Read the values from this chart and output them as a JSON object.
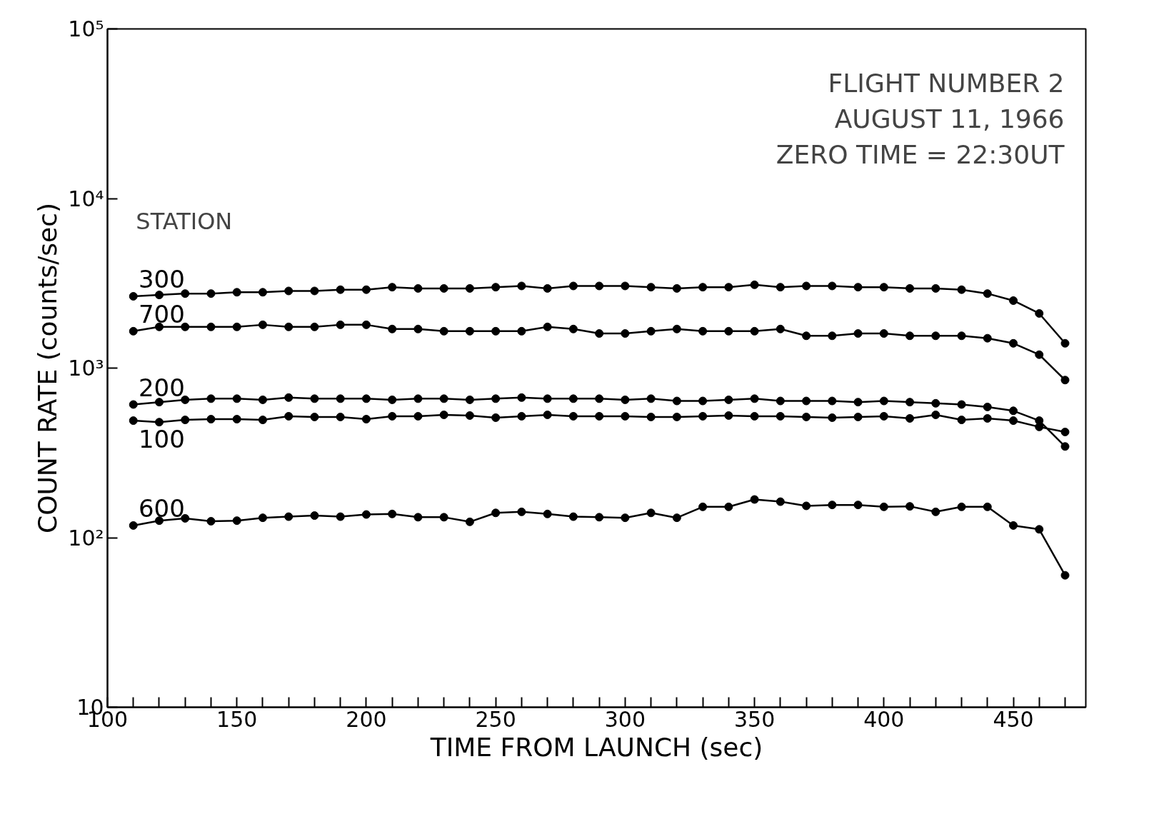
{
  "chart_data": {
    "type": "line",
    "xlabel": "TIME FROM LAUNCH (sec)",
    "ylabel": "COUNT RATE (counts/sec)",
    "legend_title": "STATION",
    "annotations": [
      "FLIGHT NUMBER 2",
      "AUGUST 11, 1966",
      "ZERO TIME = 22:30UT"
    ],
    "log": "y",
    "marker": "circle",
    "line_style": "solid",
    "grid": false,
    "xlim": [
      100,
      478
    ],
    "ylim": [
      10,
      100000
    ],
    "xticks": [
      100,
      {
        "value": 110,
        "label": null
      },
      {
        "value": 120,
        "label": null
      },
      {
        "value": 130,
        "label": null
      },
      {
        "value": 140,
        "label": null
      },
      150,
      {
        "value": 160,
        "label": null
      },
      {
        "value": 170,
        "label": null
      },
      {
        "value": 180,
        "label": null
      },
      {
        "value": 190,
        "label": null
      },
      200,
      {
        "value": 210,
        "label": null
      },
      {
        "value": 220,
        "label": null
      },
      {
        "value": 230,
        "label": null
      },
      {
        "value": 240,
        "label": null
      },
      250,
      {
        "value": 260,
        "label": null
      },
      {
        "value": 270,
        "label": null
      },
      {
        "value": 280,
        "label": null
      },
      {
        "value": 290,
        "label": null
      },
      300,
      {
        "value": 310,
        "label": null
      },
      {
        "value": 320,
        "label": null
      },
      {
        "value": 330,
        "label": null
      },
      {
        "value": 340,
        "label": null
      },
      350,
      {
        "value": 360,
        "label": null
      },
      {
        "value": 370,
        "label": null
      },
      {
        "value": 380,
        "label": null
      },
      {
        "value": 390,
        "label": null
      },
      400,
      {
        "value": 410,
        "label": null
      },
      {
        "value": 420,
        "label": null
      },
      {
        "value": 430,
        "label": null
      },
      {
        "value": 440,
        "label": null
      },
      450,
      {
        "value": 460,
        "label": null
      },
      {
        "value": 470,
        "label": null
      }
    ],
    "yticks": [
      10,
      {
        "value": 100,
        "label": "10²"
      },
      {
        "value": 1000,
        "label": "10³"
      },
      {
        "value": 10000,
        "label": "10⁴"
      },
      {
        "value": 100000,
        "label": "10⁵"
      }
    ],
    "x": [
      110,
      120,
      130,
      140,
      150,
      160,
      170,
      180,
      190,
      200,
      210,
      220,
      230,
      240,
      250,
      260,
      270,
      280,
      290,
      300,
      310,
      320,
      330,
      340,
      350,
      360,
      370,
      380,
      390,
      400,
      410,
      420,
      430,
      440,
      450,
      460,
      470
    ],
    "series": [
      {
        "name": "300",
        "color": "#000000",
        "values": [
          2650,
          2700,
          2750,
          2750,
          2800,
          2800,
          2850,
          2850,
          2900,
          2900,
          3000,
          2950,
          2950,
          2950,
          3000,
          3050,
          2950,
          3050,
          3050,
          3050,
          3000,
          2950,
          3000,
          3000,
          3100,
          3000,
          3050,
          3050,
          3000,
          3000,
          2950,
          2950,
          2900,
          2750,
          2500,
          2100,
          1400
        ]
      },
      {
        "name": "700",
        "color": "#000000",
        "values": [
          1650,
          1750,
          1750,
          1750,
          1750,
          1800,
          1750,
          1750,
          1800,
          1800,
          1700,
          1700,
          1650,
          1650,
          1650,
          1650,
          1750,
          1700,
          1600,
          1600,
          1650,
          1700,
          1650,
          1650,
          1650,
          1700,
          1550,
          1550,
          1600,
          1600,
          1550,
          1550,
          1550,
          1500,
          1400,
          1200,
          850
        ]
      },
      {
        "name": "200",
        "color": "#000000",
        "values": [
          610,
          630,
          650,
          660,
          660,
          650,
          670,
          660,
          660,
          660,
          650,
          660,
          660,
          650,
          660,
          670,
          660,
          660,
          660,
          650,
          660,
          640,
          640,
          650,
          660,
          640,
          640,
          640,
          630,
          640,
          630,
          620,
          610,
          590,
          560,
          490,
          345
        ]
      },
      {
        "name": "100",
        "color": "#000000",
        "values": [
          490,
          480,
          495,
          500,
          500,
          495,
          520,
          515,
          515,
          500,
          520,
          520,
          530,
          525,
          510,
          520,
          530,
          520,
          520,
          520,
          515,
          515,
          520,
          525,
          520,
          520,
          515,
          510,
          515,
          520,
          505,
          530,
          495,
          505,
          490,
          450,
          420
        ]
      },
      {
        "name": "600",
        "color": "#000000",
        "values": [
          118,
          126,
          130,
          125,
          126,
          131,
          133,
          135,
          133,
          137,
          138,
          132,
          132,
          124,
          140,
          142,
          138,
          133,
          132,
          131,
          140,
          131,
          152,
          152,
          168,
          163,
          154,
          156,
          156,
          152,
          153,
          142,
          152,
          152,
          118,
          112,
          60
        ]
      }
    ]
  }
}
